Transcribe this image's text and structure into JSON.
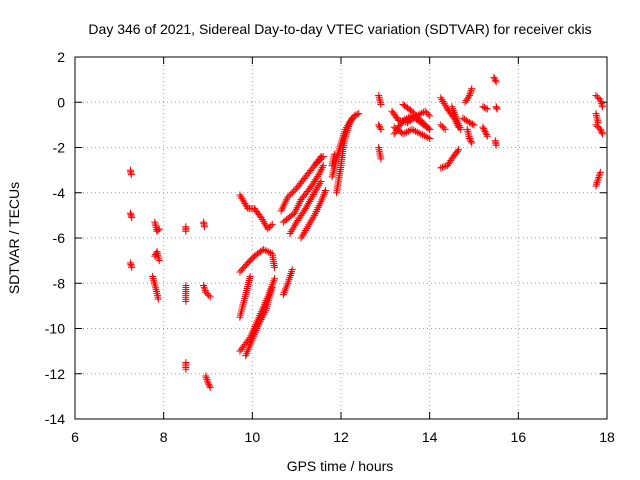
{
  "chart_data": {
    "type": "scatter",
    "title": "Day 346 of 2021, Sidereal Day-to-day VTEC variation (SDTVAR) for receiver ckis",
    "xlabel": "GPS time / hours",
    "ylabel": "SDTVAR / TECUs",
    "xlim": [
      6,
      18
    ],
    "ylim": [
      -14,
      2
    ],
    "xticks": [
      "6",
      "8",
      "10",
      "12",
      "14",
      "16",
      "18"
    ],
    "yticks": [
      "-14",
      "-12",
      "-10",
      "-8",
      "-6",
      "-4",
      "-2",
      "0",
      "2"
    ],
    "grid": true,
    "marker": "plus",
    "color": "#ff0000",
    "segments": [
      [
        [
          7.25,
          -3.0
        ],
        [
          7.27,
          -3.2
        ]
      ],
      [
        [
          7.25,
          -4.9
        ],
        [
          7.28,
          -5.1
        ]
      ],
      [
        [
          7.25,
          -7.1
        ],
        [
          7.28,
          -7.3
        ]
      ],
      [
        [
          7.8,
          -5.3
        ],
        [
          7.85,
          -5.7
        ],
        [
          7.9,
          -5.6
        ]
      ],
      [
        [
          7.8,
          -6.8
        ],
        [
          7.85,
          -6.6
        ],
        [
          7.9,
          -7.0
        ]
      ],
      [
        [
          7.75,
          -7.7
        ],
        [
          7.82,
          -8.2
        ],
        [
          7.88,
          -8.7
        ]
      ],
      [
        [
          8.5,
          -5.5
        ],
        [
          8.5,
          -5.7
        ]
      ],
      [
        [
          8.5,
          -8.1
        ],
        [
          8.5,
          -8.8
        ]
      ],
      [
        [
          8.5,
          -11.5
        ],
        [
          8.5,
          -11.8
        ]
      ],
      [
        [
          8.9,
          -5.3
        ],
        [
          8.92,
          -5.5
        ]
      ],
      [
        [
          8.9,
          -8.1
        ],
        [
          8.95,
          -8.4
        ],
        [
          9.05,
          -8.6
        ]
      ],
      [
        [
          8.95,
          -12.1
        ],
        [
          9.0,
          -12.4
        ],
        [
          9.05,
          -12.6
        ]
      ],
      [
        [
          9.72,
          -4.1
        ],
        [
          9.9,
          -4.7
        ],
        [
          10.05,
          -4.7
        ],
        [
          10.2,
          -5.1
        ],
        [
          10.35,
          -5.6
        ],
        [
          10.45,
          -5.4
        ]
      ],
      [
        [
          9.72,
          -7.5
        ],
        [
          9.9,
          -7.1
        ],
        [
          10.05,
          -6.8
        ],
        [
          10.25,
          -6.5
        ],
        [
          10.45,
          -6.7
        ],
        [
          10.5,
          -7.3
        ]
      ],
      [
        [
          9.72,
          -11.0
        ],
        [
          9.95,
          -10.4
        ],
        [
          10.15,
          -9.5
        ],
        [
          10.35,
          -8.6
        ],
        [
          10.5,
          -7.8
        ]
      ],
      [
        [
          9.72,
          -9.5
        ],
        [
          9.85,
          -8.5
        ],
        [
          9.95,
          -7.7
        ]
      ],
      [
        [
          9.85,
          -11.2
        ],
        [
          10.1,
          -10.0
        ],
        [
          10.3,
          -9.2
        ],
        [
          10.45,
          -8.2
        ]
      ],
      [
        [
          10.7,
          -8.5
        ],
        [
          10.8,
          -8.0
        ],
        [
          10.9,
          -7.4
        ]
      ],
      [
        [
          10.65,
          -4.8
        ],
        [
          10.8,
          -4.2
        ],
        [
          11.0,
          -3.8
        ],
        [
          11.2,
          -3.3
        ],
        [
          11.4,
          -2.8
        ],
        [
          11.55,
          -2.4
        ]
      ],
      [
        [
          10.7,
          -5.3
        ],
        [
          10.95,
          -4.9
        ],
        [
          11.1,
          -4.3
        ],
        [
          11.3,
          -3.8
        ],
        [
          11.5,
          -3.2
        ],
        [
          11.6,
          -2.8
        ]
      ],
      [
        [
          10.85,
          -5.8
        ],
        [
          11.0,
          -5.3
        ],
        [
          11.2,
          -4.7
        ],
        [
          11.4,
          -4.0
        ],
        [
          11.55,
          -3.5
        ]
      ],
      [
        [
          11.1,
          -6.0
        ],
        [
          11.25,
          -5.5
        ],
        [
          11.4,
          -5.0
        ],
        [
          11.55,
          -4.4
        ],
        [
          11.65,
          -3.9
        ]
      ],
      [
        [
          11.45,
          -2.7
        ],
        [
          11.6,
          -2.4
        ]
      ],
      [
        [
          11.9,
          -4.0
        ],
        [
          11.95,
          -3.4
        ],
        [
          12.0,
          -2.8
        ],
        [
          12.05,
          -2.0
        ],
        [
          12.1,
          -1.5
        ],
        [
          12.2,
          -0.9
        ],
        [
          12.3,
          -0.6
        ],
        [
          12.4,
          -0.5
        ]
      ],
      [
        [
          11.8,
          -3.3
        ],
        [
          11.9,
          -2.5
        ],
        [
          12.0,
          -1.8
        ],
        [
          12.1,
          -1.2
        ],
        [
          12.25,
          -0.7
        ]
      ],
      [
        [
          11.8,
          -2.8
        ],
        [
          11.85,
          -2.3
        ]
      ],
      [
        [
          12.85,
          0.3
        ],
        [
          12.9,
          -0.1
        ]
      ],
      [
        [
          12.85,
          -1.0
        ],
        [
          12.9,
          -1.2
        ]
      ],
      [
        [
          12.85,
          -2.0
        ],
        [
          12.9,
          -2.5
        ]
      ],
      [
        [
          13.15,
          -0.4
        ],
        [
          13.3,
          -0.8
        ],
        [
          13.5,
          -0.9
        ],
        [
          13.7,
          -0.6
        ],
        [
          13.9,
          -0.4
        ],
        [
          14.0,
          -0.6
        ]
      ],
      [
        [
          13.2,
          -1.4
        ],
        [
          13.4,
          -0.8
        ],
        [
          13.6,
          -0.6
        ],
        [
          13.8,
          -0.9
        ],
        [
          14.0,
          -1.2
        ]
      ],
      [
        [
          13.4,
          -0.1
        ],
        [
          13.6,
          -0.4
        ],
        [
          13.8,
          -0.8
        ],
        [
          14.0,
          -1.2
        ]
      ],
      [
        [
          13.2,
          -1.1
        ],
        [
          13.4,
          -1.4
        ],
        [
          13.6,
          -1.2
        ],
        [
          13.8,
          -1.4
        ],
        [
          14.0,
          -1.6
        ]
      ],
      [
        [
          14.25,
          0.2
        ],
        [
          14.4,
          -0.3
        ],
        [
          14.55,
          -0.7
        ],
        [
          14.65,
          -1.1
        ]
      ],
      [
        [
          14.25,
          -1.0
        ],
        [
          14.35,
          -1.2
        ]
      ],
      [
        [
          14.25,
          -2.9
        ],
        [
          14.4,
          -2.8
        ],
        [
          14.5,
          -2.5
        ],
        [
          14.65,
          -2.1
        ]
      ],
      [
        [
          14.5,
          -0.2
        ],
        [
          14.6,
          -0.7
        ],
        [
          14.7,
          -1.2
        ]
      ],
      [
        [
          14.75,
          -0.7
        ],
        [
          14.9,
          -0.9
        ],
        [
          15.0,
          -1.0
        ]
      ],
      [
        [
          14.85,
          -1.2
        ],
        [
          14.9,
          -1.6
        ],
        [
          14.95,
          -1.8
        ]
      ],
      [
        [
          14.8,
          0.0
        ],
        [
          14.9,
          0.3
        ],
        [
          14.95,
          0.6
        ]
      ],
      [
        [
          15.2,
          -0.2
        ],
        [
          15.3,
          -0.3
        ]
      ],
      [
        [
          15.2,
          -1.1
        ],
        [
          15.25,
          -1.3
        ],
        [
          15.3,
          -1.5
        ]
      ],
      [
        [
          15.45,
          1.1
        ],
        [
          15.5,
          0.9
        ]
      ],
      [
        [
          15.5,
          -0.2
        ],
        [
          15.52,
          -0.3
        ]
      ],
      [
        [
          15.48,
          -1.7
        ],
        [
          15.5,
          -1.9
        ]
      ],
      [
        [
          17.75,
          0.3
        ],
        [
          17.85,
          0.1
        ],
        [
          17.9,
          -0.2
        ]
      ],
      [
        [
          17.75,
          -0.5
        ],
        [
          17.8,
          -0.9
        ]
      ],
      [
        [
          17.75,
          -1.0
        ],
        [
          17.85,
          -1.2
        ],
        [
          17.9,
          -1.4
        ]
      ],
      [
        [
          17.75,
          -3.7
        ],
        [
          17.8,
          -3.4
        ],
        [
          17.85,
          -3.1
        ]
      ]
    ]
  }
}
